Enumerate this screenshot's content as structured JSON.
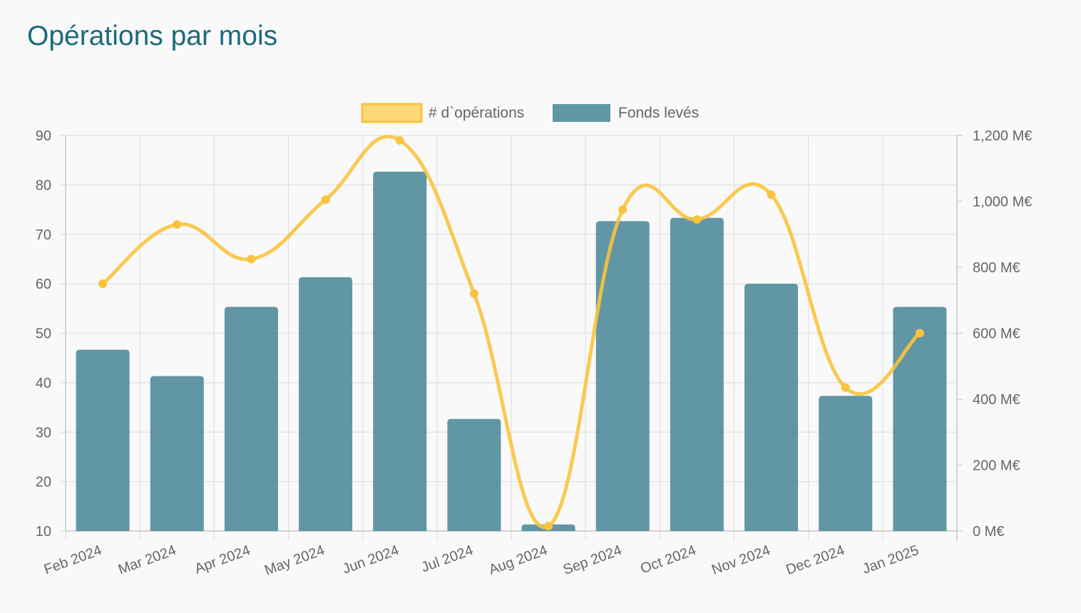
{
  "page": {
    "title": "Opérations par mois"
  },
  "chart_data": {
    "type": "bar",
    "categories": [
      "Feb 2024",
      "Mar 2024",
      "Apr 2024",
      "May 2024",
      "Jun 2024",
      "Jul 2024",
      "Aug 2024",
      "Sep 2024",
      "Oct 2024",
      "Nov 2024",
      "Dec 2024",
      "Jan 2025"
    ],
    "series": [
      {
        "name": "# d`opérations",
        "type": "line",
        "axis": "left",
        "color": "#f9c33d",
        "values": [
          60,
          72,
          65,
          77,
          89,
          58,
          11,
          75,
          73,
          78,
          39,
          50
        ]
      },
      {
        "name": "Fonds levés",
        "type": "bar",
        "axis": "right",
        "color": "#4a8698",
        "values": [
          550,
          470,
          680,
          770,
          1090,
          340,
          20,
          940,
          950,
          750,
          410,
          680
        ]
      }
    ],
    "y_left": {
      "ticks": [
        "90",
        "80",
        "70",
        "60",
        "50",
        "40",
        "30",
        "20",
        "10"
      ],
      "range": [
        10,
        90
      ]
    },
    "y_right": {
      "ticks": [
        "1,200 M€",
        "1,000 M€",
        "800 M€",
        "600 M€",
        "400 M€",
        "200 M€",
        "0 M€"
      ],
      "range": [
        0,
        1200
      ]
    },
    "grid": true,
    "legend": "top"
  }
}
